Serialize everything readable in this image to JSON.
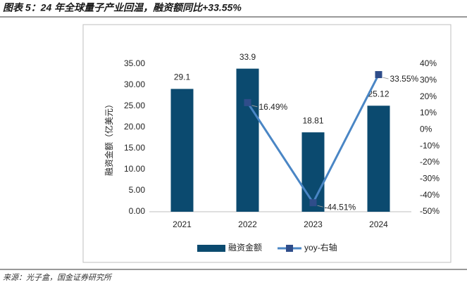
{
  "chart_data": {
    "type": "bar",
    "title": "图表 5：24 年全球量子产业回温，融资额同比+33.55%",
    "source": "来源：光子盒，国金证券研究所",
    "y_label": "融资金额（亿美元）",
    "categories": [
      "2021",
      "2022",
      "2023",
      "2024"
    ],
    "series": [
      {
        "name": "融资金额",
        "type": "bar",
        "color": "#0b4a6f",
        "values": [
          29.1,
          33.9,
          18.81,
          25.12
        ]
      },
      {
        "name": "yoy-右轴",
        "type": "line",
        "axis": "y2",
        "color": "#4a86c5",
        "values": [
          null,
          16.49,
          -44.51,
          33.55
        ],
        "value_labels": [
          null,
          "16.49%",
          "-44.51%",
          "33.55%"
        ]
      }
    ],
    "ylim": [
      0,
      35
    ],
    "yticks": [
      {
        "value": 0,
        "label": "0.00"
      },
      {
        "value": 5,
        "label": "5.00"
      },
      {
        "value": 10,
        "label": "10.00"
      },
      {
        "value": 15,
        "label": "15.00"
      },
      {
        "value": 20,
        "label": "20.00"
      },
      {
        "value": 25,
        "label": "25.00"
      },
      {
        "value": 30,
        "label": "30.00"
      },
      {
        "value": 35,
        "label": "35.00"
      }
    ],
    "y2lim": [
      -50,
      40
    ],
    "y2ticks": [
      {
        "value": -50,
        "label": "-50%"
      },
      {
        "value": -40,
        "label": "-40%"
      },
      {
        "value": -30,
        "label": "-30%"
      },
      {
        "value": -20,
        "label": "-20%"
      },
      {
        "value": -10,
        "label": "-10%"
      },
      {
        "value": 0,
        "label": "0%"
      },
      {
        "value": 10,
        "label": "10%"
      },
      {
        "value": 20,
        "label": "20%"
      },
      {
        "value": 30,
        "label": "30%"
      },
      {
        "value": 40,
        "label": "40%"
      }
    ],
    "grid": false,
    "legend": "bottom"
  }
}
